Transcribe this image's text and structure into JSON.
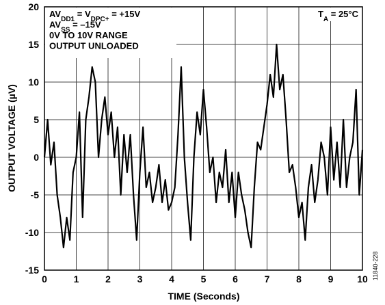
{
  "chart_data": {
    "type": "line",
    "annotations": [
      [
        "AV",
        "DD1",
        " = V",
        "DPC+",
        " = +15V"
      ],
      [
        "AV",
        "SS",
        " = –15V"
      ],
      [
        "0V TO 10V RANGE"
      ],
      [
        "OUTPUT UNLOADED"
      ]
    ],
    "corner_note": [
      "T",
      "A",
      " = 25°C"
    ],
    "xlabel": "TIME (Seconds)",
    "ylabel": "OUTPUT VOLTAGE (µV)",
    "figure_id": "11840-228",
    "color": "#000000",
    "grid": true,
    "xlim": [
      0,
      10
    ],
    "xticks": [
      0,
      1,
      2,
      3,
      4,
      5,
      6,
      7,
      8,
      9,
      10
    ],
    "ylim": [
      -15,
      20
    ],
    "yticks": [
      -15,
      -10,
      -5,
      0,
      5,
      10,
      15,
      20
    ],
    "x": [
      0,
      0.1,
      0.2,
      0.3,
      0.4,
      0.5,
      0.6,
      0.7,
      0.8,
      0.9,
      1,
      1.1,
      1.2,
      1.3,
      1.4,
      1.5,
      1.6,
      1.7,
      1.8,
      1.9,
      2,
      2.1,
      2.2,
      2.3,
      2.4,
      2.5,
      2.6,
      2.7,
      2.8,
      2.9,
      3,
      3.1,
      3.2,
      3.3,
      3.4,
      3.5,
      3.6,
      3.7,
      3.8,
      3.9,
      4,
      4.1,
      4.2,
      4.3,
      4.4,
      4.5,
      4.6,
      4.7,
      4.8,
      4.9,
      5,
      5.1,
      5.2,
      5.3,
      5.4,
      5.5,
      5.6,
      5.7,
      5.8,
      5.9,
      6,
      6.1,
      6.2,
      6.3,
      6.4,
      6.5,
      6.6,
      6.7,
      6.8,
      6.9,
      7,
      7.1,
      7.2,
      7.3,
      7.4,
      7.5,
      7.6,
      7.7,
      7.8,
      7.9,
      8,
      8.1,
      8.2,
      8.3,
      8.4,
      8.5,
      8.6,
      8.7,
      8.8,
      8.9,
      9,
      9.1,
      9.2,
      9.3,
      9.4,
      9.5,
      9.6,
      9.7,
      9.8,
      9.9,
      10
    ],
    "values": [
      0,
      5,
      -1,
      2,
      -5,
      -8,
      -12,
      -8,
      -11,
      -2,
      0,
      6,
      -8,
      5,
      8,
      12,
      10,
      0,
      5,
      8,
      3,
      6,
      0,
      4,
      -5,
      3,
      -2,
      3,
      -5,
      -11,
      -2,
      4,
      -4,
      -2,
      -6,
      -4,
      -1,
      -6,
      -3,
      -7,
      -6,
      -4,
      3,
      12,
      0,
      -6,
      -11,
      0,
      6,
      3,
      9,
      4,
      -2,
      0,
      -6,
      -2,
      -4,
      1,
      -6,
      -2,
      -8,
      -2,
      -5,
      -7,
      -10,
      -12,
      -4,
      2,
      1,
      4,
      7,
      11,
      8,
      15,
      9,
      11,
      5,
      -2,
      -1,
      -4,
      -8,
      -6,
      -11,
      -4,
      -1,
      -6,
      -3,
      2,
      0,
      -5,
      4,
      -3,
      2,
      -4,
      5,
      -4,
      0,
      2,
      9,
      -5,
      1
    ]
  }
}
